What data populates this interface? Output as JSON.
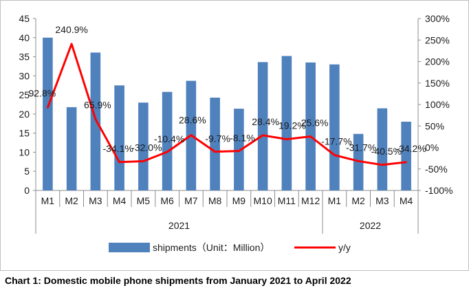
{
  "caption": "Chart 1: Domestic mobile phone shipments from January 2021 to April 2022",
  "chart_data": {
    "type": "bar",
    "title": "",
    "categories": [
      "M1",
      "M2",
      "M3",
      "M4",
      "M5",
      "M6",
      "M7",
      "M8",
      "M9",
      "M10",
      "M11",
      "M12",
      "M1",
      "M2",
      "M3",
      "M4"
    ],
    "groups": [
      {
        "label": "2021",
        "count": 12
      },
      {
        "label": "2022",
        "count": 4
      }
    ],
    "series": [
      {
        "name": "shipments（Unit：Million）",
        "type": "bar",
        "axis": "left",
        "color": "#4f81bd",
        "values": [
          40.0,
          21.8,
          36.1,
          27.5,
          23.0,
          25.8,
          28.7,
          24.3,
          21.4,
          33.6,
          35.2,
          33.5,
          33.0,
          14.8,
          21.5,
          18.0
        ]
      },
      {
        "name": "y/y",
        "type": "line",
        "axis": "right",
        "color": "#ff0000",
        "values": [
          92.8,
          240.9,
          65.9,
          -34.1,
          -32.0,
          -10.4,
          28.6,
          -9.7,
          -8.1,
          28.4,
          19.2,
          25.6,
          -17.7,
          -31.7,
          -40.5,
          -34.2
        ],
        "labels": [
          "92.8%",
          "240.9%",
          "65.9%",
          "-34.1%",
          "-32.0%",
          "-10.4%",
          "28.6%",
          "-9.7%",
          "-8.1%",
          "28.4%",
          "19.2%",
          "25.6%",
          "-17.7%",
          "-31.7%",
          "-40.5%",
          "-34.2%"
        ]
      }
    ],
    "y_left": {
      "min": 0,
      "max": 45,
      "step": 5,
      "ticks": [
        "0",
        "5",
        "10",
        "15",
        "20",
        "25",
        "30",
        "35",
        "40",
        "45"
      ]
    },
    "y_right": {
      "min": -100,
      "max": 300,
      "step": 50,
      "ticks": [
        "-100%",
        "-50%",
        "0%",
        "50%",
        "100%",
        "150%",
        "200%",
        "250%",
        "300%"
      ]
    },
    "grid": false,
    "legend_position": "bottom"
  }
}
